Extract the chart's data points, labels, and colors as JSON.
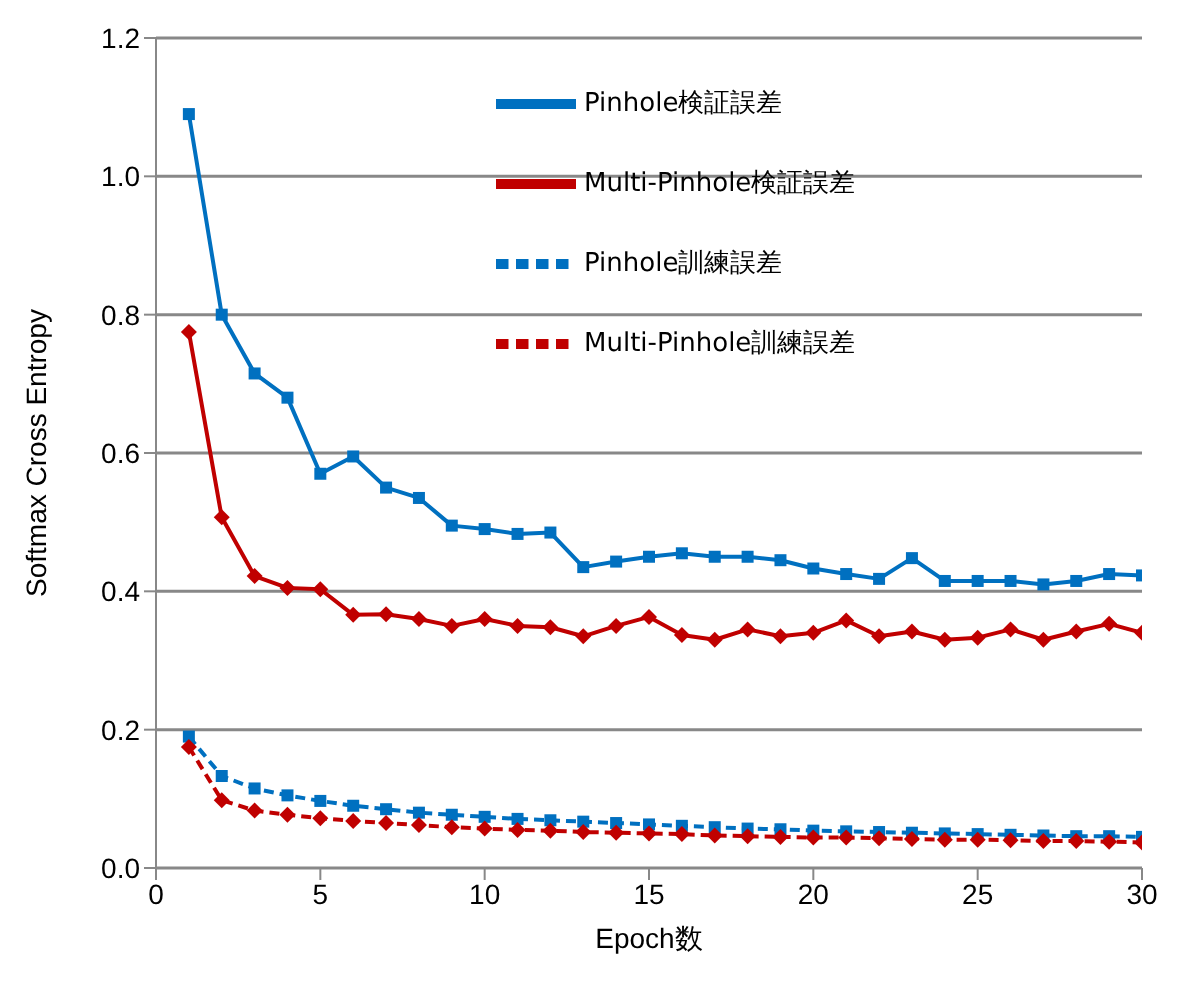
{
  "chart_data": {
    "type": "line",
    "xlabel": "Epoch数",
    "ylabel": "Softmax Cross Entropy",
    "x": [
      1,
      2,
      3,
      4,
      5,
      6,
      7,
      8,
      9,
      10,
      11,
      12,
      13,
      14,
      15,
      16,
      17,
      18,
      19,
      20,
      21,
      22,
      23,
      24,
      25,
      26,
      27,
      28,
      29,
      30
    ],
    "xlim": [
      0,
      30
    ],
    "xticks": [
      0,
      5,
      10,
      15,
      20,
      25,
      30
    ],
    "ylim": [
      0,
      1.2
    ],
    "yticks": [
      {
        "value": 0,
        "label": "0.0"
      },
      0.2,
      0.4,
      0.6,
      0.8,
      {
        "value": 1,
        "label": "1.0"
      },
      1.2
    ],
    "grid": "y",
    "legend": "top right",
    "series": [
      {
        "name": "Pinhole検証誤差",
        "color": "#0070c0",
        "marker": "square",
        "line_style": "solid",
        "values": [
          1.09,
          0.8,
          0.715,
          0.68,
          0.57,
          0.595,
          0.55,
          0.535,
          0.495,
          0.49,
          0.483,
          0.485,
          0.435,
          0.443,
          0.45,
          0.455,
          0.45,
          0.45,
          0.445,
          0.433,
          0.425,
          0.418,
          0.448,
          0.415,
          0.415,
          0.415,
          0.41,
          0.415,
          0.425,
          0.423
        ]
      },
      {
        "name": "Multi-Pinhole検証誤差",
        "color": "#c00000",
        "marker": "diamond",
        "line_style": "solid",
        "values": [
          0.775,
          0.507,
          0.422,
          0.405,
          0.403,
          0.366,
          0.367,
          0.36,
          0.35,
          0.36,
          0.35,
          0.348,
          0.335,
          0.35,
          0.363,
          0.337,
          0.33,
          0.345,
          0.335,
          0.34,
          0.358,
          0.335,
          0.342,
          0.33,
          0.333,
          0.345,
          0.33,
          0.342,
          0.353,
          0.34
        ]
      },
      {
        "name": "Pinhole訓練誤差",
        "color": "#0070c0",
        "marker": "square",
        "line_style": "dashed",
        "values": [
          0.19,
          0.133,
          0.115,
          0.105,
          0.097,
          0.09,
          0.085,
          0.08,
          0.077,
          0.074,
          0.071,
          0.069,
          0.067,
          0.065,
          0.063,
          0.061,
          0.059,
          0.057,
          0.056,
          0.054,
          0.053,
          0.052,
          0.051,
          0.05,
          0.049,
          0.048,
          0.047,
          0.046,
          0.046,
          0.045
        ]
      },
      {
        "name": "Multi-Pinhole訓練誤差",
        "color": "#c00000",
        "marker": "diamond",
        "line_style": "dashed",
        "values": [
          0.175,
          0.098,
          0.083,
          0.077,
          0.072,
          0.068,
          0.065,
          0.062,
          0.059,
          0.057,
          0.055,
          0.054,
          0.052,
          0.051,
          0.05,
          0.049,
          0.047,
          0.046,
          0.045,
          0.044,
          0.044,
          0.043,
          0.042,
          0.041,
          0.041,
          0.04,
          0.039,
          0.039,
          0.038,
          0.037
        ]
      }
    ]
  }
}
